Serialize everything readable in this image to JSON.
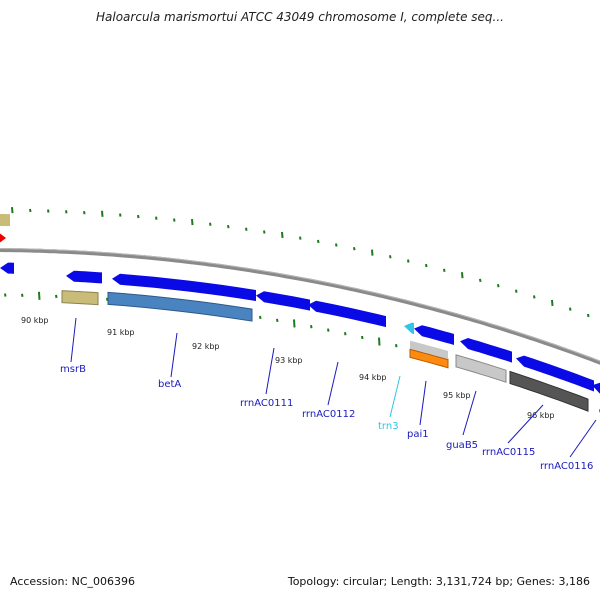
{
  "title": "Haloarcula marismortui ATCC 43049 chromosome I, complete seq...",
  "footer": {
    "accession": "Accession: NC_006396",
    "summary": "Topology: circular; Length: 3,131,724 bp; Genes: 3,186"
  },
  "colors": {
    "cds": "#0a0ae6",
    "backbone": "#8a8a8a",
    "tick": "#1e7a1e",
    "gene_label": "#1a1abf",
    "trna_label": "#33c4e6",
    "trna": "#33c4e6",
    "marker_red": "#ee0000",
    "khaki": "#c8bc78",
    "steelblue": "#4a84c0",
    "orange": "#ff8a10",
    "lightgray": "#c8c8c8",
    "darkgray": "#555555"
  },
  "scale_labels": [
    "90 kbp",
    "91 kbp",
    "92 kbp",
    "93 kbp",
    "94 kbp",
    "95 kbp",
    "96 kbp"
  ],
  "gene_labels": [
    {
      "name": "msrB",
      "type": "gene"
    },
    {
      "name": "betA",
      "type": "gene"
    },
    {
      "name": "rrnAC0111",
      "type": "gene"
    },
    {
      "name": "rrnAC0112",
      "type": "gene"
    },
    {
      "name": "trn3",
      "type": "trna"
    },
    {
      "name": "pai1",
      "type": "gene"
    },
    {
      "name": "guaB5",
      "type": "gene"
    },
    {
      "name": "rrnAC0115",
      "type": "gene"
    },
    {
      "name": "rrnAC0116",
      "type": "gene"
    }
  ]
}
